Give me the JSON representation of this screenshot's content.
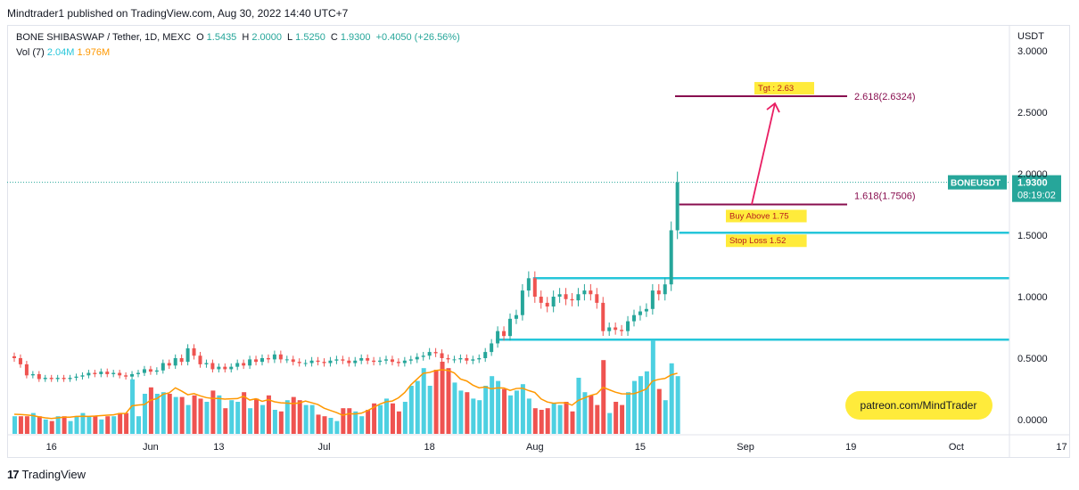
{
  "header": {
    "published": "Mindtrader1 published on TradingView.com, Aug 30, 2022 14:40 UTC+7",
    "symbol": "BONE SHIBASWAP / Tether, 1D, MEXC",
    "o_label": "O",
    "o_val": "1.5435",
    "h_label": "H",
    "h_val": "2.0000",
    "l_label": "L",
    "l_val": "1.5250",
    "c_label": "C",
    "c_val": "1.9300",
    "change": "+0.4050 (+26.56%)",
    "vol_label": "Vol (7)",
    "vol_val1": "2.04M",
    "vol_val2": "1.976M"
  },
  "footer": {
    "brand": "TradingView"
  },
  "colors": {
    "up": "#26a69a",
    "down": "#ef5350",
    "vol_up": "#4dd0e1",
    "vol_down": "#ef5350",
    "vol_ma": "#ff9800",
    "level": "#26c6da",
    "fib": "#880e4f",
    "arrow": "#e91e63",
    "tag_bg": "#ffeb3b",
    "tag_text": "#b71c1c"
  },
  "chart_data": {
    "type": "candlestick",
    "currency": "USDT",
    "x_ticks": [
      "16",
      "Jun",
      "13",
      "Jul",
      "18",
      "Aug",
      "15",
      "Sep",
      "19",
      "Oct",
      "17"
    ],
    "y_ticks": [
      "3.0000",
      "2.5000",
      "2.0000",
      "1.5000",
      "1.0000",
      "0.5000",
      "0.0000"
    ],
    "ylim": [
      0,
      3.0
    ],
    "last_price": {
      "symbol": "BONEUSDT",
      "price": "1.9300",
      "countdown": "08:19:02"
    },
    "closes": [
      0.5,
      0.45,
      0.36,
      0.37,
      0.33,
      0.34,
      0.33,
      0.34,
      0.33,
      0.34,
      0.35,
      0.36,
      0.38,
      0.37,
      0.39,
      0.37,
      0.38,
      0.36,
      0.35,
      0.37,
      0.38,
      0.41,
      0.39,
      0.4,
      0.46,
      0.44,
      0.5,
      0.47,
      0.58,
      0.52,
      0.45,
      0.46,
      0.41,
      0.43,
      0.41,
      0.43,
      0.46,
      0.44,
      0.49,
      0.47,
      0.5,
      0.49,
      0.53,
      0.49,
      0.49,
      0.47,
      0.46,
      0.46,
      0.48,
      0.47,
      0.46,
      0.48,
      0.49,
      0.48,
      0.46,
      0.48,
      0.5,
      0.48,
      0.47,
      0.48,
      0.49,
      0.47,
      0.46,
      0.48,
      0.49,
      0.51,
      0.52,
      0.55,
      0.54,
      0.5,
      0.49,
      0.49,
      0.5,
      0.48,
      0.49,
      0.5,
      0.55,
      0.62,
      0.72,
      0.68,
      0.82,
      0.85,
      1.05,
      1.15,
      1.0,
      0.95,
      0.92,
      1.0,
      1.02,
      0.98,
      0.97,
      1.02,
      1.05,
      1.02,
      0.95,
      0.72,
      0.75,
      0.73,
      0.72,
      0.8,
      0.85,
      0.88,
      0.9,
      1.05,
      1.02,
      1.1,
      1.54,
      1.93
    ],
    "volume": [
      11,
      11,
      11,
      13,
      11,
      9,
      8,
      11,
      11,
      8,
      11,
      13,
      11,
      11,
      9,
      11,
      11,
      13,
      13,
      34,
      11,
      25,
      29,
      25,
      26,
      25,
      23,
      23,
      18,
      24,
      22,
      20,
      27,
      24,
      16,
      21,
      20,
      26,
      16,
      22,
      18,
      24,
      15,
      14,
      21,
      23,
      21,
      18,
      18,
      12,
      11,
      10,
      8,
      16,
      16,
      14,
      11,
      15,
      19,
      18,
      22,
      19,
      14,
      20,
      30,
      33,
      41,
      30,
      40,
      45,
      41,
      32,
      27,
      26,
      22,
      21,
      30,
      36,
      33,
      28,
      24,
      27,
      31,
      22,
      16,
      15,
      16,
      19,
      18,
      20,
      14,
      35,
      26,
      24,
      18,
      46,
      13,
      20,
      18,
      26,
      33,
      36,
      39,
      58,
      28,
      21,
      44,
      36
    ],
    "vol_ma": [
      12.2,
      12.1,
      11.8,
      11.4,
      10.6,
      10.0,
      9.6,
      10.0,
      10.4,
      10.4,
      10.9,
      11.0,
      10.9,
      11.1,
      11.4,
      11.7,
      11.9,
      12.7,
      12.8,
      17.5,
      18.0,
      18.3,
      21.0,
      22.0,
      24.7,
      25.6,
      28.7,
      26.7,
      24.4,
      25.1,
      23.7,
      22.6,
      22.1,
      22.1,
      21.7,
      21.9,
      22.0,
      23.5,
      21.1,
      21.9,
      20.3,
      21.3,
      20.0,
      19.4,
      19.2,
      18.9,
      19.3,
      20.5,
      19.4,
      18.3,
      16.0,
      14.6,
      13.3,
      11.6,
      12.6,
      12.4,
      12.9,
      14.5,
      16.5,
      18.6,
      20.0,
      20.5,
      22.5,
      25.8,
      30.6,
      34.2,
      37.8,
      38.3,
      39.5,
      40.0,
      39.6,
      38.0,
      34.2,
      33.0,
      30.4,
      28.7,
      29.2,
      28.1,
      28.7,
      28.6,
      27.1,
      28.3,
      28.5,
      27.0,
      25.8,
      21.8,
      19.9,
      19.1,
      19.4,
      19.4,
      17.9,
      20.9,
      22.4,
      24.0,
      25.0,
      29.0,
      27.5,
      26.0,
      25.0,
      24.9,
      25.1,
      26.4,
      28.0,
      33.0,
      34.0,
      34.6,
      36.8,
      37.8
    ]
  },
  "annotations": {
    "tgt_label": "Tgt : 2.63",
    "fib_2618": "2.618(2.6324)",
    "fib_1618": "1.618(1.7506)",
    "buy_label": "Buy Above 1.75",
    "stop_label": "Stop Loss 1.52",
    "patreon": "patreon.com/MindTrader",
    "level_high": 1.15,
    "level_mid": 0.65,
    "level_stop": 1.52,
    "level_buy": 1.75,
    "level_tgt": 2.63
  }
}
